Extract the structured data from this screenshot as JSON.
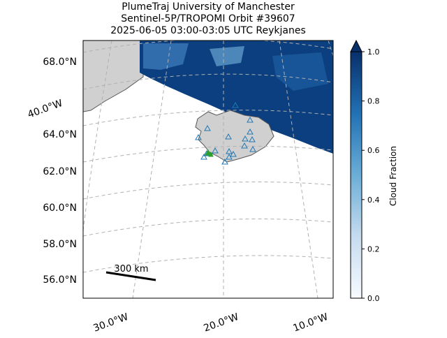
{
  "map": {
    "title": [
      "PlumeTraj    University of Manchester",
      "Sentinel-5P/TROPOMI Orbit #39607",
      "2025-06-05   03:00-03:05 UTC   Reykjanes"
    ],
    "lat_labels": [
      "68.0°N",
      "64.0°N",
      "62.0°N",
      "60.0°N",
      "58.0°N",
      "56.0°N"
    ],
    "lon_labels": [
      "40.0°W",
      "30.0°W",
      "20.0°W",
      "10.0°W"
    ],
    "scale_bar_label": "300 km",
    "colorbar": {
      "label": "Cloud Fraction",
      "lim": [
        0,
        1
      ],
      "ticks": [
        {
          "value": 0,
          "label": "0.0"
        },
        0.2,
        0.4,
        0.6,
        0.8,
        {
          "value": 1,
          "label": "1.0"
        }
      ],
      "colors": [
        "#f7fbff",
        "#c6dbef",
        "#6baed6",
        "#2171b5",
        "#08306b"
      ]
    }
  }
}
